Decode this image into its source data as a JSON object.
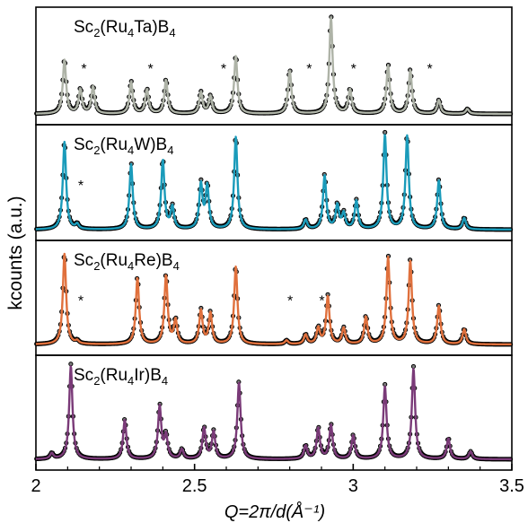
{
  "chart_data": {
    "type": "line",
    "title": "",
    "xlabel": "Q=2π/d(Å⁻¹)",
    "ylabel": "kcounts (a.u.)",
    "xlim": [
      2.0,
      3.5
    ],
    "x_ticks": [
      "2",
      "2.5",
      "3",
      "3.5"
    ],
    "grid": false,
    "legend": "none",
    "colors": {
      "observed": "#000000",
      "Sc2(Ru4Ta)B4": "#aeb3a7",
      "Sc2(Ru4W)B4": "#1a9bba",
      "Sc2(Ru4Re)B4": "#e0703c",
      "Sc2(Ru4Ir)B4": "#7a3a78"
    },
    "panels": [
      {
        "label": {
          "base": "Sc",
          "s1": "2",
          "mid": "(Ru",
          "s2": "4",
          "metal": "Ta",
          "end": ")B",
          "s3": "4"
        },
        "impurity_marker": "*",
        "impurity_peaks": [
          2.14,
          2.35,
          2.58,
          2.85,
          2.99,
          3.23
        ],
        "peaks": [
          {
            "q": 2.09,
            "intensity": 0.56
          },
          {
            "q": 2.14,
            "intensity": 0.25
          },
          {
            "q": 2.18,
            "intensity": 0.28
          },
          {
            "q": 2.3,
            "intensity": 0.33
          },
          {
            "q": 2.35,
            "intensity": 0.25
          },
          {
            "q": 2.41,
            "intensity": 0.35
          },
          {
            "q": 2.52,
            "intensity": 0.22
          },
          {
            "q": 2.55,
            "intensity": 0.18
          },
          {
            "q": 2.63,
            "intensity": 0.6
          },
          {
            "q": 2.8,
            "intensity": 0.45
          },
          {
            "q": 2.93,
            "intensity": 1.0
          },
          {
            "q": 2.99,
            "intensity": 0.25
          },
          {
            "q": 3.11,
            "intensity": 0.5
          },
          {
            "q": 3.18,
            "intensity": 0.45
          },
          {
            "q": 3.27,
            "intensity": 0.14
          },
          {
            "q": 3.36,
            "intensity": 0.05
          }
        ]
      },
      {
        "label": {
          "base": "Sc",
          "s1": "2",
          "mid": "(Ru",
          "s2": "4",
          "metal": "W",
          "end": ")B",
          "s3": "4"
        },
        "impurity_marker": "*",
        "impurity_peaks": [
          2.13
        ],
        "peaks": [
          {
            "q": 2.09,
            "intensity": 0.93
          },
          {
            "q": 2.13,
            "intensity": 0.05
          },
          {
            "q": 2.3,
            "intensity": 0.69
          },
          {
            "q": 2.4,
            "intensity": 0.73
          },
          {
            "q": 2.43,
            "intensity": 0.23
          },
          {
            "q": 2.52,
            "intensity": 0.47
          },
          {
            "q": 2.54,
            "intensity": 0.45
          },
          {
            "q": 2.63,
            "intensity": 0.98
          },
          {
            "q": 2.85,
            "intensity": 0.1
          },
          {
            "q": 2.91,
            "intensity": 0.57
          },
          {
            "q": 2.95,
            "intensity": 0.25
          },
          {
            "q": 2.97,
            "intensity": 0.16
          },
          {
            "q": 3.01,
            "intensity": 0.3
          },
          {
            "q": 3.1,
            "intensity": 1.0
          },
          {
            "q": 3.17,
            "intensity": 0.99
          },
          {
            "q": 3.27,
            "intensity": 0.52
          },
          {
            "q": 3.35,
            "intensity": 0.12
          }
        ]
      },
      {
        "label": {
          "base": "Sc",
          "s1": "2",
          "mid": "(Ru",
          "s2": "4",
          "metal": "Re",
          "end": ")B",
          "s3": "4"
        },
        "impurity_marker": "*",
        "impurity_peaks": [
          2.13,
          2.79,
          2.89
        ],
        "peaks": [
          {
            "q": 2.09,
            "intensity": 0.97
          },
          {
            "q": 2.13,
            "intensity": 0.03
          },
          {
            "q": 2.32,
            "intensity": 0.71
          },
          {
            "q": 2.41,
            "intensity": 0.73
          },
          {
            "q": 2.44,
            "intensity": 0.25
          },
          {
            "q": 2.52,
            "intensity": 0.36
          },
          {
            "q": 2.55,
            "intensity": 0.33
          },
          {
            "q": 2.63,
            "intensity": 0.83
          },
          {
            "q": 2.79,
            "intensity": 0.04
          },
          {
            "q": 2.85,
            "intensity": 0.1
          },
          {
            "q": 2.89,
            "intensity": 0.17
          },
          {
            "q": 2.92,
            "intensity": 0.51
          },
          {
            "q": 2.97,
            "intensity": 0.17
          },
          {
            "q": 3.04,
            "intensity": 0.29
          },
          {
            "q": 3.11,
            "intensity": 0.93
          },
          {
            "q": 3.18,
            "intensity": 0.89
          },
          {
            "q": 3.27,
            "intensity": 0.41
          },
          {
            "q": 3.35,
            "intensity": 0.16
          }
        ]
      },
      {
        "label": {
          "base": "Sc",
          "s1": "2",
          "mid": "(Ru",
          "s2": "4",
          "metal": "Ir",
          "end": ")B",
          "s3": "4"
        },
        "impurity_marker": "",
        "impurity_peaks": [],
        "peaks": [
          {
            "q": 2.05,
            "intensity": 0.06
          },
          {
            "q": 2.11,
            "intensity": 1.0
          },
          {
            "q": 2.28,
            "intensity": 0.42
          },
          {
            "q": 2.39,
            "intensity": 0.56
          },
          {
            "q": 2.41,
            "intensity": 0.24
          },
          {
            "q": 2.46,
            "intensity": 0.1
          },
          {
            "q": 2.53,
            "intensity": 0.33
          },
          {
            "q": 2.56,
            "intensity": 0.29
          },
          {
            "q": 2.64,
            "intensity": 0.82
          },
          {
            "q": 2.85,
            "intensity": 0.14
          },
          {
            "q": 2.89,
            "intensity": 0.33
          },
          {
            "q": 2.93,
            "intensity": 0.36
          },
          {
            "q": 3.0,
            "intensity": 0.25
          },
          {
            "q": 3.1,
            "intensity": 0.78
          },
          {
            "q": 3.19,
            "intensity": 0.97
          },
          {
            "q": 3.3,
            "intensity": 0.22
          },
          {
            "q": 3.37,
            "intensity": 0.08
          }
        ]
      }
    ]
  }
}
